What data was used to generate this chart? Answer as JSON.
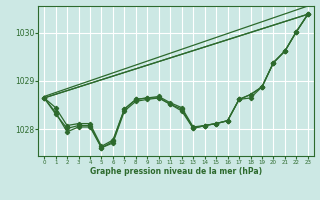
{
  "xlabel": "Graphe pression niveau de la mer (hPa)",
  "background_color": "#cce8e4",
  "grid_color": "#ffffff",
  "line_color": "#2d6a2d",
  "xlim": [
    -0.5,
    23.5
  ],
  "ylim": [
    1027.45,
    1030.55
  ],
  "yticks": [
    1028,
    1029,
    1030
  ],
  "xticks": [
    0,
    1,
    2,
    3,
    4,
    5,
    6,
    7,
    8,
    9,
    10,
    11,
    12,
    13,
    14,
    15,
    16,
    17,
    18,
    19,
    20,
    21,
    22,
    23
  ],
  "line_zigzag": [
    1028.65,
    1028.35,
    1027.95,
    1028.05,
    1028.05,
    1027.62,
    1027.72,
    1028.38,
    1028.58,
    1028.62,
    1028.65,
    1028.52,
    1028.42,
    1028.02,
    1028.08,
    1028.12,
    1028.18,
    1028.62,
    1028.72,
    1028.88,
    1029.38,
    1029.62,
    1030.02,
    1030.38
  ],
  "line_straight1": [
    [
      0,
      23
    ],
    [
      1028.65,
      1030.38
    ]
  ],
  "line_straight2": [
    [
      0,
      23
    ],
    [
      1028.65,
      1030.38
    ]
  ],
  "line_upper": [
    [
      0,
      10,
      23
    ],
    [
      1028.65,
      1028.68,
      1030.38
    ]
  ],
  "line_wide_upper": [
    [
      0,
      23
    ],
    [
      1028.65,
      1030.38
    ]
  ],
  "line_second": [
    1028.65,
    1028.32,
    1028.02,
    1028.08,
    1028.08,
    1027.62,
    1027.75,
    1028.42,
    1028.62,
    1028.65,
    1028.68,
    1028.55,
    1028.45,
    1028.05,
    1028.08,
    1028.12,
    1028.18,
    1028.62,
    1028.72,
    1028.88,
    1029.38,
    1029.62,
    1030.02,
    1030.38
  ],
  "line_third": [
    1028.65,
    1028.45,
    1028.08,
    1028.12,
    1028.12,
    1027.65,
    1027.78,
    1028.42,
    1028.62,
    1028.65,
    1028.65,
    1028.52,
    1028.38,
    1028.02,
    1028.08,
    1028.12,
    1028.18,
    1028.62,
    1028.65,
    1028.88,
    1029.38,
    1029.62,
    1030.02,
    1030.38
  ]
}
